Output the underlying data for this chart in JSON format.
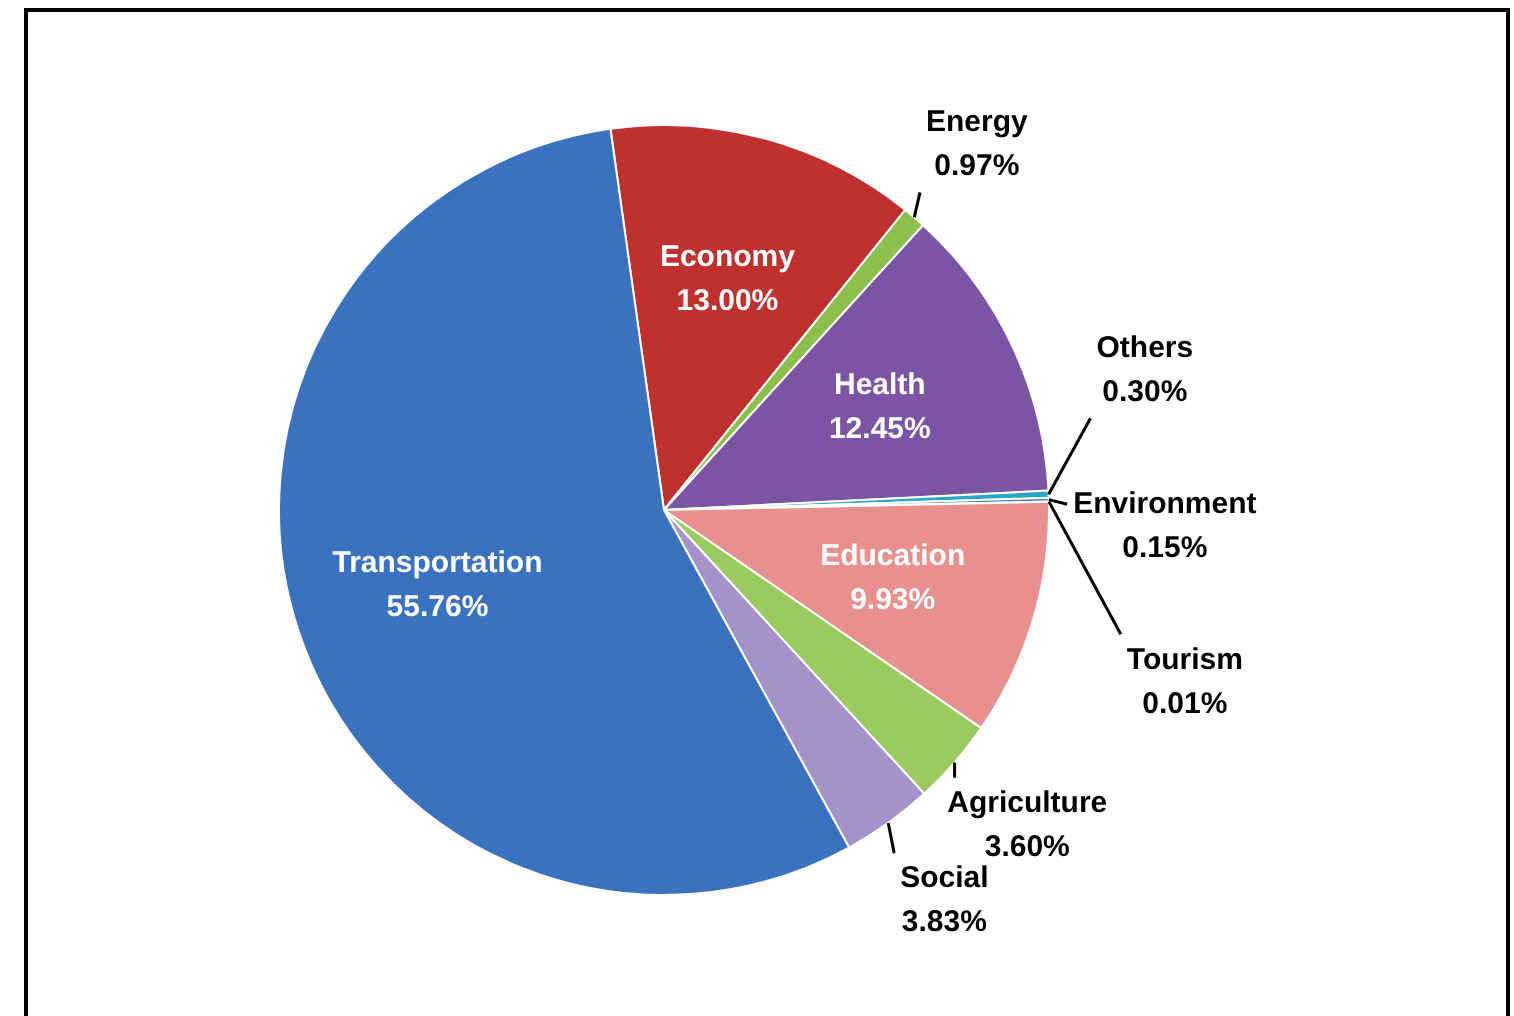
{
  "chart_data": {
    "type": "pie",
    "categories": [
      "Economy",
      "Energy",
      "Health",
      "Others",
      "Environment",
      "Tourism",
      "Education",
      "Agriculture",
      "Social",
      "Transportation"
    ],
    "values": [
      13.0,
      0.97,
      12.45,
      0.3,
      0.15,
      0.01,
      9.93,
      3.6,
      3.83,
      55.76
    ],
    "colors": [
      "#c0302e",
      "#8cc04a",
      "#7b54a4",
      "#2aa7c4",
      "#3a72c0",
      "#e8908e",
      "#e8908e",
      "#9bcb60",
      "#a592c8",
      "#3a72c0"
    ],
    "value_labels": [
      "13.00%",
      "0.97%",
      "12.45%",
      "0.30%",
      "0.15%",
      "0.01%",
      "9.93%",
      "3.60%",
      "3.83%",
      "55.76%"
    ],
    "legend": false
  }
}
